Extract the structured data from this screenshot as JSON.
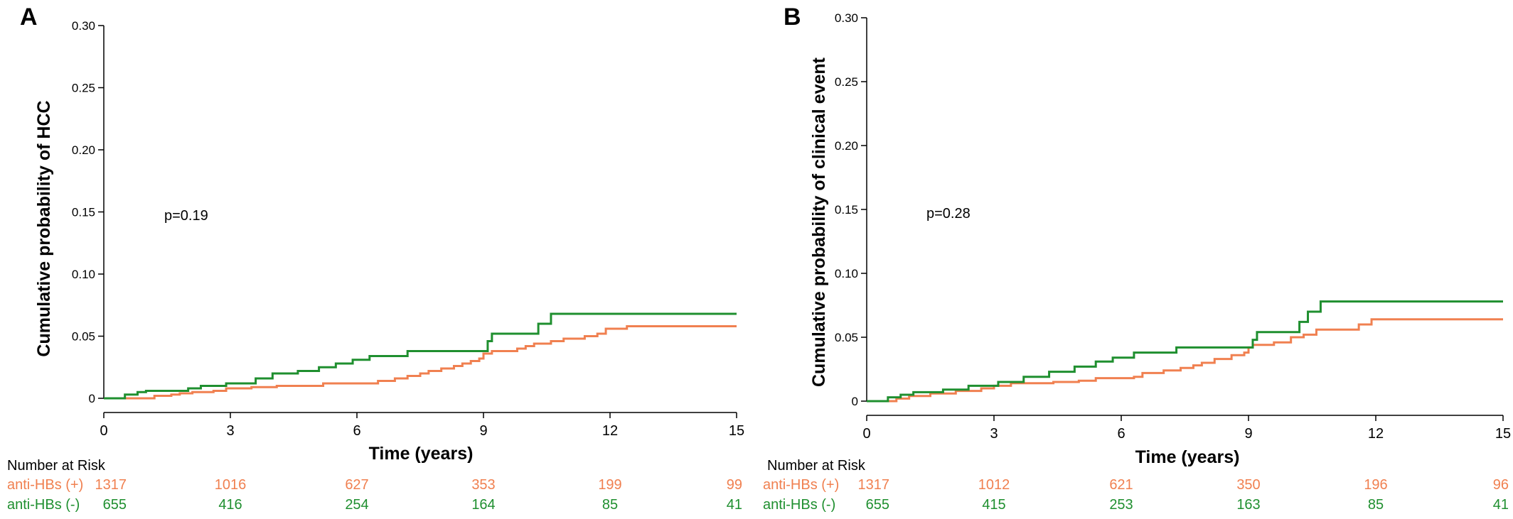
{
  "colors": {
    "pos": "#f08050",
    "neg": "#1f8f2f",
    "axis": "#000000"
  },
  "risk_table_title": "Number at Risk",
  "chart_data": [
    {
      "type": "line",
      "panel_label": "A",
      "xlabel": "Time (years)",
      "ylabel": "Cumulative probability of HCC",
      "annotation": "p=0.19",
      "xlim": [
        0,
        15
      ],
      "ylim": [
        0,
        0.3
      ],
      "x_ticks": [
        0,
        3,
        6,
        9,
        12,
        15
      ],
      "x_tick_labels": [
        "0",
        "3",
        "6",
        "9",
        "12",
        "15"
      ],
      "y_ticks": [
        0,
        0.05,
        0.1,
        0.15,
        0.2,
        0.25,
        0.3
      ],
      "y_tick_labels": [
        "0",
        "0.05",
        "0.10",
        "0.15",
        "0.20",
        "0.25",
        "0.30"
      ],
      "series": [
        {
          "name": "anti-HBs (+)",
          "color_key": "pos",
          "points": [
            [
              0,
              0
            ],
            [
              1.2,
              0.002
            ],
            [
              1.6,
              0.003
            ],
            [
              1.8,
              0.004
            ],
            [
              2.1,
              0.005
            ],
            [
              2.6,
              0.006
            ],
            [
              2.9,
              0.008
            ],
            [
              3.5,
              0.009
            ],
            [
              4.1,
              0.01
            ],
            [
              4.9,
              0.01
            ],
            [
              5.2,
              0.012
            ],
            [
              6.2,
              0.012
            ],
            [
              6.5,
              0.014
            ],
            [
              6.9,
              0.016
            ],
            [
              7.2,
              0.018
            ],
            [
              7.5,
              0.02
            ],
            [
              7.7,
              0.022
            ],
            [
              8.0,
              0.024
            ],
            [
              8.3,
              0.026
            ],
            [
              8.5,
              0.028
            ],
            [
              8.7,
              0.03
            ],
            [
              8.9,
              0.032
            ],
            [
              9.0,
              0.036
            ],
            [
              9.2,
              0.038
            ],
            [
              9.8,
              0.04
            ],
            [
              10.0,
              0.042
            ],
            [
              10.2,
              0.044
            ],
            [
              10.6,
              0.046
            ],
            [
              10.9,
              0.048
            ],
            [
              11.4,
              0.05
            ],
            [
              11.7,
              0.052
            ],
            [
              11.9,
              0.056
            ],
            [
              12.4,
              0.058
            ],
            [
              15,
              0.058
            ]
          ],
          "risk": [
            "1317",
            "1016",
            "627",
            "353",
            "199",
            "99"
          ]
        },
        {
          "name": "anti-HBs (-)",
          "color_key": "neg",
          "points": [
            [
              0,
              0
            ],
            [
              0.5,
              0.003
            ],
            [
              0.8,
              0.005
            ],
            [
              1.0,
              0.006
            ],
            [
              2.0,
              0.008
            ],
            [
              2.3,
              0.01
            ],
            [
              2.9,
              0.012
            ],
            [
              3.6,
              0.016
            ],
            [
              4.0,
              0.02
            ],
            [
              4.6,
              0.022
            ],
            [
              5.1,
              0.025
            ],
            [
              5.5,
              0.028
            ],
            [
              5.9,
              0.031
            ],
            [
              6.3,
              0.034
            ],
            [
              7.2,
              0.038
            ],
            [
              7.5,
              0.038
            ],
            [
              9.1,
              0.046
            ],
            [
              9.2,
              0.052
            ],
            [
              10.3,
              0.06
            ],
            [
              10.6,
              0.068
            ],
            [
              15,
              0.068
            ]
          ],
          "risk": [
            "655",
            "416",
            "254",
            "164",
            "85",
            "41"
          ]
        }
      ]
    },
    {
      "type": "line",
      "panel_label": "B",
      "xlabel": "Time (years)",
      "ylabel": "Cumulative probability of clinical event",
      "annotation": "p=0.28",
      "xlim": [
        0,
        15
      ],
      "ylim": [
        0,
        0.3
      ],
      "x_ticks": [
        0,
        3,
        6,
        9,
        12,
        15
      ],
      "x_tick_labels": [
        "0",
        "3",
        "6",
        "9",
        "12",
        "15"
      ],
      "y_ticks": [
        0,
        0.05,
        0.1,
        0.15,
        0.2,
        0.25,
        0.3
      ],
      "y_tick_labels": [
        "0",
        "0.05",
        "0.10",
        "0.15",
        "0.20",
        "0.25",
        "0.30"
      ],
      "series": [
        {
          "name": "anti-HBs (+)",
          "color_key": "pos",
          "points": [
            [
              0,
              0
            ],
            [
              0.7,
              0.002
            ],
            [
              1.0,
              0.004
            ],
            [
              1.5,
              0.006
            ],
            [
              2.1,
              0.008
            ],
            [
              2.7,
              0.01
            ],
            [
              3.0,
              0.012
            ],
            [
              3.4,
              0.014
            ],
            [
              4.4,
              0.015
            ],
            [
              5.0,
              0.016
            ],
            [
              5.4,
              0.018
            ],
            [
              6.3,
              0.019
            ],
            [
              6.5,
              0.022
            ],
            [
              7.0,
              0.024
            ],
            [
              7.4,
              0.026
            ],
            [
              7.7,
              0.028
            ],
            [
              7.9,
              0.03
            ],
            [
              8.2,
              0.033
            ],
            [
              8.6,
              0.036
            ],
            [
              8.9,
              0.038
            ],
            [
              9.0,
              0.042
            ],
            [
              9.1,
              0.044
            ],
            [
              9.6,
              0.046
            ],
            [
              10.0,
              0.05
            ],
            [
              10.3,
              0.052
            ],
            [
              10.6,
              0.056
            ],
            [
              11.6,
              0.06
            ],
            [
              11.9,
              0.064
            ],
            [
              15,
              0.064
            ]
          ],
          "risk": [
            "1317",
            "1012",
            "621",
            "350",
            "196",
            "96"
          ]
        },
        {
          "name": "anti-HBs (-)",
          "color_key": "neg",
          "points": [
            [
              0,
              0
            ],
            [
              0.5,
              0.003
            ],
            [
              0.8,
              0.005
            ],
            [
              1.1,
              0.007
            ],
            [
              1.8,
              0.009
            ],
            [
              2.4,
              0.012
            ],
            [
              3.1,
              0.015
            ],
            [
              3.7,
              0.019
            ],
            [
              4.3,
              0.023
            ],
            [
              4.9,
              0.027
            ],
            [
              5.4,
              0.031
            ],
            [
              5.8,
              0.034
            ],
            [
              6.3,
              0.038
            ],
            [
              7.3,
              0.042
            ],
            [
              9.1,
              0.048
            ],
            [
              9.2,
              0.054
            ],
            [
              10.2,
              0.062
            ],
            [
              10.4,
              0.07
            ],
            [
              10.7,
              0.078
            ],
            [
              15,
              0.078
            ]
          ],
          "risk": [
            "655",
            "415",
            "253",
            "163",
            "85",
            "41"
          ]
        }
      ]
    }
  ]
}
